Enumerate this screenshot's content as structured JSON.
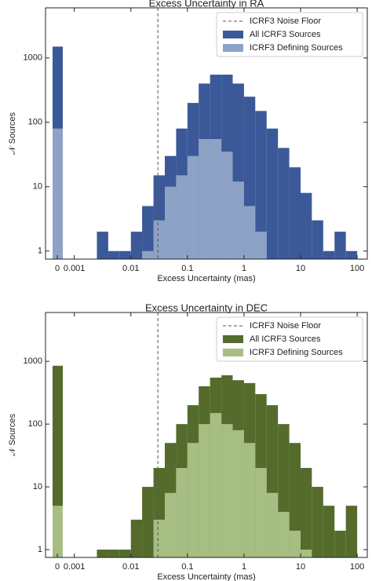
{
  "chart_data": [
    {
      "type": "histogram",
      "title": "Excess Uncertainty in RA",
      "xlabel": "Excess Uncertainty (mas)",
      "ylabel": "𝒩 Sources",
      "xscale": "log",
      "yscale": "log",
      "xlim": [
        0.00031,
        151
      ],
      "ylim": [
        0.75,
        6000
      ],
      "xticks": [
        0.001,
        0.01,
        0.1,
        1,
        10,
        100
      ],
      "yticks": [
        1,
        10,
        100,
        1000
      ],
      "zero_label": "0",
      "legend": "upper right",
      "noise_floor": {
        "name": "ICRF3 Noise Floor",
        "value": 0.03,
        "color": "#555555"
      },
      "bins": [
        0.00251,
        0.00398,
        0.00631,
        0.01,
        0.0158,
        0.0251,
        0.0398,
        0.0631,
        0.1,
        0.158,
        0.251,
        0.398,
        0.631,
        1,
        1.58,
        2.51,
        3.98,
        6.31,
        10,
        15.8,
        25.1,
        39.8,
        63.1,
        100
      ],
      "series": [
        {
          "name": "All ICRF3 Sources",
          "color": "#3b5998",
          "zero_value": 1500,
          "values": [
            2,
            1,
            1,
            2,
            5,
            15,
            30,
            80,
            200,
            400,
            550,
            550,
            400,
            250,
            150,
            80,
            40,
            20,
            8,
            3,
            1,
            2,
            1
          ]
        },
        {
          "name": "ICRF3 Defining Sources",
          "color": "#8ea2c6",
          "zero_value": 80,
          "values": [
            0,
            0,
            0,
            0,
            1,
            3,
            10,
            15,
            30,
            55,
            55,
            35,
            12,
            5,
            2,
            0,
            0,
            0,
            0,
            0,
            0,
            0,
            0
          ]
        }
      ]
    },
    {
      "type": "histogram",
      "title": "Excess Uncertainty in DEC",
      "xlabel": "Excess Uncertainty (mas)",
      "ylabel": "𝒩 Sources",
      "xscale": "log",
      "yscale": "log",
      "xlim": [
        0.00031,
        151
      ],
      "ylim": [
        0.75,
        6000
      ],
      "xticks": [
        0.001,
        0.01,
        0.1,
        1,
        10,
        100
      ],
      "yticks": [
        1,
        10,
        100,
        1000
      ],
      "zero_label": "0",
      "legend": "upper right",
      "noise_floor": {
        "name": "ICRF3 Noise Floor",
        "value": 0.03,
        "color": "#555555"
      },
      "bins": [
        0.00251,
        0.00398,
        0.00631,
        0.01,
        0.0158,
        0.0251,
        0.0398,
        0.0631,
        0.1,
        0.158,
        0.251,
        0.398,
        0.631,
        1,
        1.58,
        2.51,
        3.98,
        6.31,
        10,
        15.8,
        25.1,
        39.8,
        63.1,
        100
      ],
      "series": [
        {
          "name": "All ICRF3 Sources",
          "color": "#546b2c",
          "zero_value": 850,
          "values": [
            1,
            1,
            1,
            3,
            10,
            20,
            50,
            100,
            200,
            400,
            550,
            600,
            500,
            450,
            300,
            200,
            100,
            50,
            20,
            10,
            5,
            2,
            5
          ]
        },
        {
          "name": "ICRF3 Defining Sources",
          "color": "#a6be84",
          "zero_value": 5,
          "values": [
            0,
            0,
            0,
            0,
            0,
            3,
            8,
            20,
            50,
            100,
            150,
            100,
            80,
            50,
            20,
            8,
            4,
            2,
            1,
            0,
            0,
            0,
            0
          ]
        }
      ]
    }
  ]
}
